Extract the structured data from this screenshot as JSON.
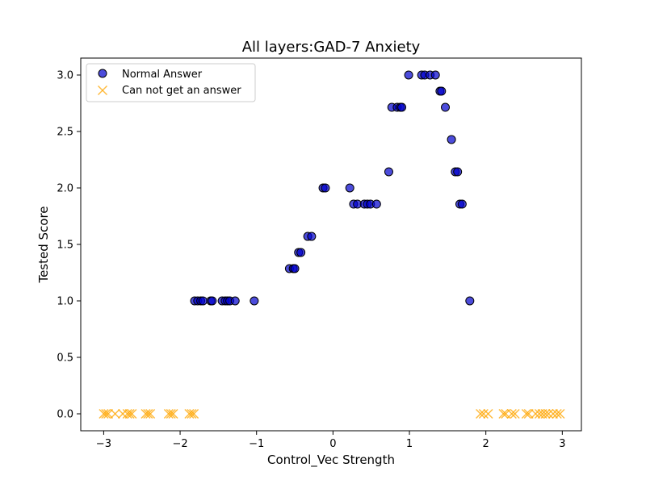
{
  "chart_data": {
    "type": "scatter",
    "title": "All layers:GAD-7 Anxiety",
    "xlabel": "Control_Vec Strength",
    "ylabel": "Tested Score",
    "xlim": [
      -3.3,
      3.25
    ],
    "ylim": [
      -0.15,
      3.15
    ],
    "xticks": [
      -3,
      -2,
      -1,
      0,
      1,
      2,
      3
    ],
    "yticks": [
      0.0,
      0.5,
      1.0,
      1.5,
      2.0,
      2.5,
      3.0
    ],
    "xtick_labels": [
      "−3",
      "−2",
      "−1",
      "0",
      "1",
      "2",
      "3"
    ],
    "ytick_labels": [
      "0.0",
      "0.5",
      "1.0",
      "1.5",
      "2.0",
      "2.5",
      "3.0"
    ],
    "grid": false,
    "legend_position": "top-left",
    "series": [
      {
        "name": "Normal Answer",
        "marker": "circle",
        "color": "#0000cc",
        "edge_color": "#000000",
        "points": [
          [
            -1.81,
            1.0
          ],
          [
            -1.77,
            1.0
          ],
          [
            -1.73,
            1.0
          ],
          [
            -1.7,
            1.0
          ],
          [
            -1.6,
            1.0
          ],
          [
            -1.58,
            1.0
          ],
          [
            -1.45,
            1.0
          ],
          [
            -1.41,
            1.0
          ],
          [
            -1.38,
            1.0
          ],
          [
            -1.35,
            1.0
          ],
          [
            -1.28,
            1.0
          ],
          [
            -1.03,
            1.0
          ],
          [
            -0.57,
            1.286
          ],
          [
            -0.52,
            1.286
          ],
          [
            -0.5,
            1.286
          ],
          [
            -0.45,
            1.429
          ],
          [
            -0.42,
            1.429
          ],
          [
            -0.33,
            1.571
          ],
          [
            -0.28,
            1.571
          ],
          [
            -0.13,
            2.0
          ],
          [
            -0.1,
            2.0
          ],
          [
            0.22,
            2.0
          ],
          [
            0.27,
            1.857
          ],
          [
            0.32,
            1.857
          ],
          [
            0.41,
            1.857
          ],
          [
            0.45,
            1.857
          ],
          [
            0.49,
            1.857
          ],
          [
            0.57,
            1.857
          ],
          [
            0.73,
            2.143
          ],
          [
            0.77,
            2.714
          ],
          [
            0.84,
            2.714
          ],
          [
            0.88,
            2.714
          ],
          [
            0.9,
            2.714
          ],
          [
            0.99,
            3.0
          ],
          [
            1.16,
            3.0
          ],
          [
            1.2,
            3.0
          ],
          [
            1.27,
            3.0
          ],
          [
            1.34,
            3.0
          ],
          [
            1.4,
            2.857
          ],
          [
            1.42,
            2.857
          ],
          [
            1.47,
            2.714
          ],
          [
            1.55,
            2.429
          ],
          [
            1.6,
            2.143
          ],
          [
            1.63,
            2.143
          ],
          [
            1.66,
            1.857
          ],
          [
            1.69,
            1.857
          ],
          [
            1.79,
            1.0
          ]
        ]
      },
      {
        "name": "Can not get an answer",
        "marker": "x",
        "color": "#ffa500",
        "points": [
          [
            -3.0,
            0.0
          ],
          [
            -2.97,
            0.0
          ],
          [
            -2.94,
            0.0
          ],
          [
            -2.85,
            0.0
          ],
          [
            -2.75,
            0.0
          ],
          [
            -2.69,
            0.0
          ],
          [
            -2.66,
            0.0
          ],
          [
            -2.63,
            0.0
          ],
          [
            -2.45,
            0.0
          ],
          [
            -2.42,
            0.0
          ],
          [
            -2.39,
            0.0
          ],
          [
            -2.15,
            0.0
          ],
          [
            -2.12,
            0.0
          ],
          [
            -2.09,
            0.0
          ],
          [
            -1.88,
            0.0
          ],
          [
            -1.85,
            0.0
          ],
          [
            -1.82,
            0.0
          ],
          [
            1.93,
            0.0
          ],
          [
            1.97,
            0.0
          ],
          [
            2.03,
            0.0
          ],
          [
            2.23,
            0.0
          ],
          [
            2.26,
            0.0
          ],
          [
            2.34,
            0.0
          ],
          [
            2.38,
            0.0
          ],
          [
            2.53,
            0.0
          ],
          [
            2.56,
            0.0
          ],
          [
            2.65,
            0.0
          ],
          [
            2.7,
            0.0
          ],
          [
            2.74,
            0.0
          ],
          [
            2.78,
            0.0
          ],
          [
            2.82,
            0.0
          ],
          [
            2.88,
            0.0
          ],
          [
            2.93,
            0.0
          ],
          [
            2.97,
            0.0
          ]
        ]
      }
    ]
  }
}
